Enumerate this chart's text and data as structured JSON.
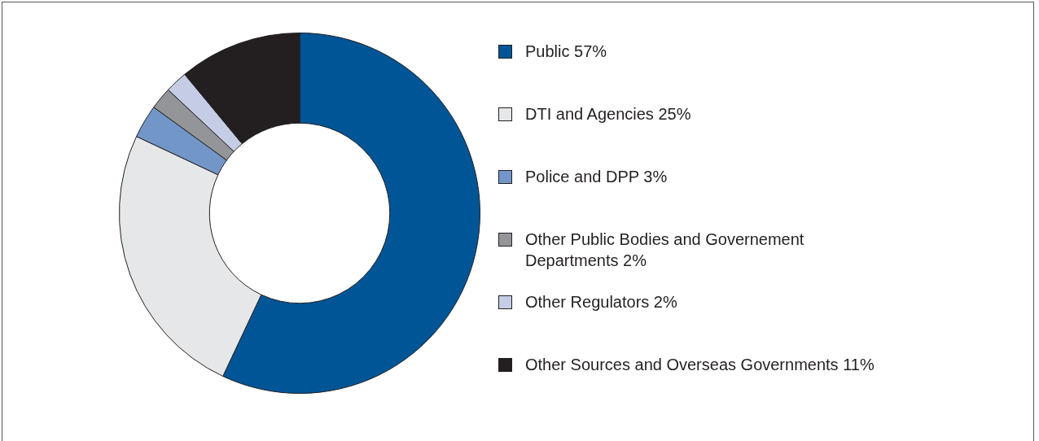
{
  "chart_data": {
    "type": "donut",
    "categories": [
      "Public 57%",
      "DTI and Agencies 25%",
      "Police and DPP 3%",
      "Other Public Bodies and Governement Departments 2%",
      "Other Regulators 2%",
      "Other Sources and Overseas Governments 11%"
    ],
    "values": [
      57,
      25,
      3,
      2,
      2,
      11
    ],
    "colors": [
      "#005596",
      "#e6e7e8",
      "#7396c8",
      "#939598",
      "#c5cde6",
      "#231f20"
    ],
    "legend": "right"
  }
}
